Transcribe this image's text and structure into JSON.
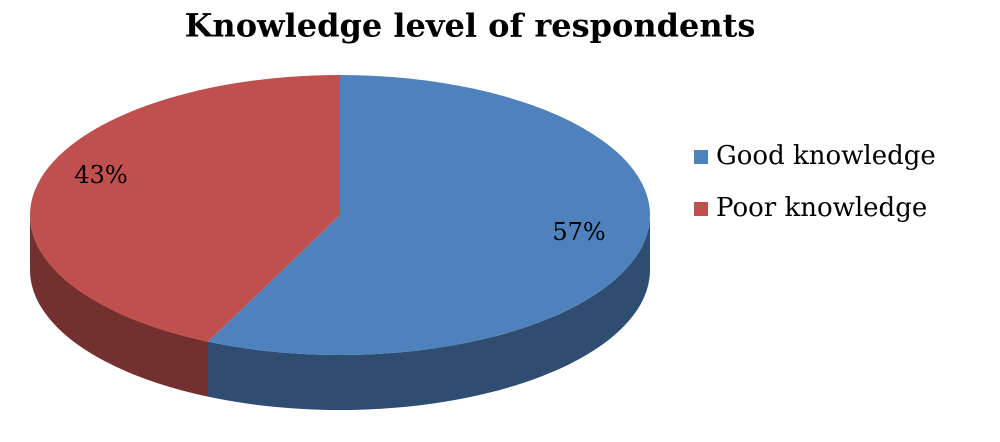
{
  "chart_data": {
    "type": "pie",
    "title": "Knowledge level of respondents",
    "categories": [
      "Good knowledge",
      "Poor knowledge"
    ],
    "values": [
      57,
      43
    ],
    "value_labels": [
      "57%",
      "43%"
    ],
    "colors": [
      "#4f81bd",
      "#c0504d"
    ],
    "legend": "right"
  }
}
